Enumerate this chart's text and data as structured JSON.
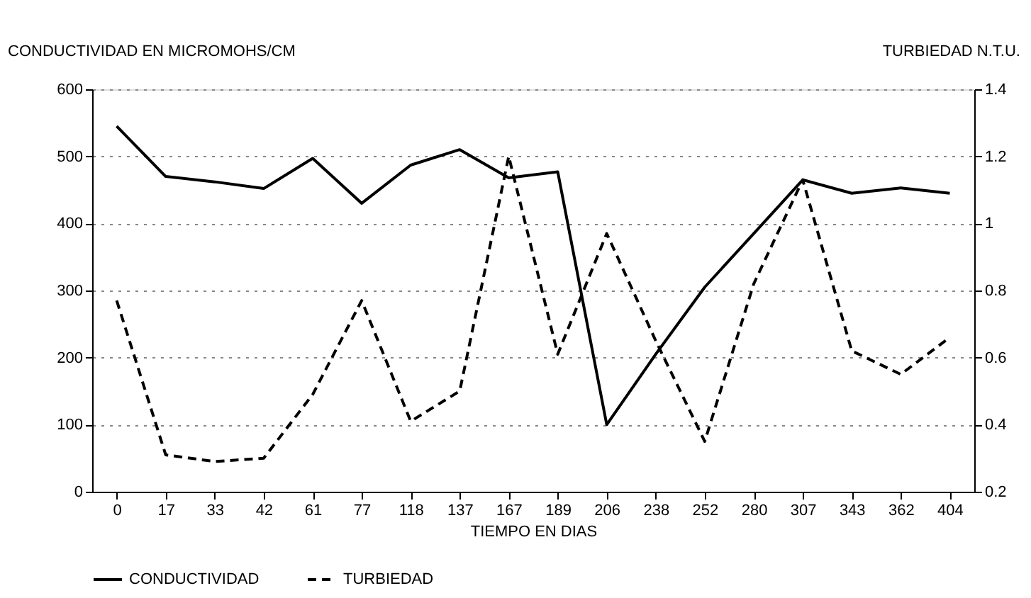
{
  "chart_data": {
    "type": "line",
    "xlabel": "TIEMPO EN DIAS",
    "ylabel": "CONDUCTIVIDAD EN MICROMOHS/CM",
    "y2label": "TURBIEDAD N.T.U.",
    "categories": [
      "0",
      "17",
      "33",
      "42",
      "61",
      "77",
      "118",
      "137",
      "167",
      "189",
      "206",
      "238",
      "252",
      "280",
      "307",
      "343",
      "362",
      "404"
    ],
    "series": [
      {
        "name": "CONDUCTIVIDAD",
        "color": "#000000",
        "line_style": "solid",
        "values": [
          545,
          470,
          462,
          452,
          497,
          430,
          487,
          510,
          468,
          477,
          100,
          205,
          305,
          385,
          465,
          445,
          453,
          445
        ]
      },
      {
        "name": "TURBIEDAD",
        "color": "#000000",
        "line_style": "dashed",
        "axis": "y2",
        "values": [
          0.77,
          0.31,
          0.29,
          0.3,
          0.49,
          0.77,
          0.41,
          0.5,
          1.2,
          0.61,
          0.97,
          0.65,
          0.35,
          0.82,
          1.13,
          0.62,
          0.55,
          0.66
        ]
      }
    ],
    "ylim": [
      0,
      600
    ],
    "yticks": [
      0,
      100,
      200,
      300,
      400,
      500,
      600
    ],
    "y2lim": [
      0.2,
      1.4
    ],
    "y2ticks": [
      0.2,
      0.4,
      0.6,
      0.8,
      {
        "value": 1,
        "label": "1"
      },
      1.2,
      1.4
    ],
    "grid": "y",
    "legend": "bottom",
    "marker": "none"
  }
}
